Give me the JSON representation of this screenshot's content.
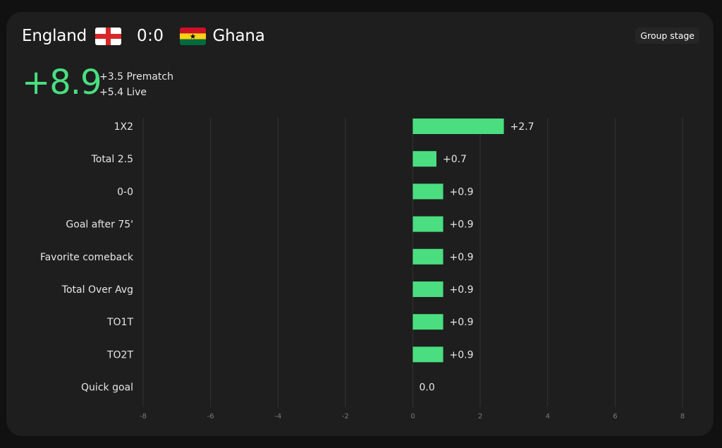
{
  "match": {
    "home_team": "England",
    "away_team": "Ghana",
    "score": "0:0",
    "stage": "Group stage"
  },
  "summary": {
    "total": "+8.9",
    "prematch": "+3.5 Prematch",
    "live": "+5.4 Live"
  },
  "colors": {
    "accent": "#4ade80",
    "background": "#1e1e1e",
    "grid": "#333333"
  },
  "chart_data": {
    "type": "bar",
    "orientation": "horizontal",
    "categories": [
      "1X2",
      "Total 2.5",
      "0-0",
      "Goal after 75'",
      "Favorite comeback",
      "Total Over Avg",
      "TO1T",
      "TO2T",
      "Quick goal"
    ],
    "values": [
      2.7,
      0.7,
      0.9,
      0.9,
      0.9,
      0.9,
      0.9,
      0.9,
      0.0
    ],
    "value_labels": [
      "+2.7",
      "+0.7",
      "+0.9",
      "+0.9",
      "+0.9",
      "+0.9",
      "+0.9",
      "+0.9",
      "0.0"
    ],
    "xlim": [
      -8,
      8
    ],
    "xticks": [
      -8,
      -6,
      -4,
      -2,
      0,
      2,
      4,
      6,
      8
    ],
    "grid": true
  }
}
